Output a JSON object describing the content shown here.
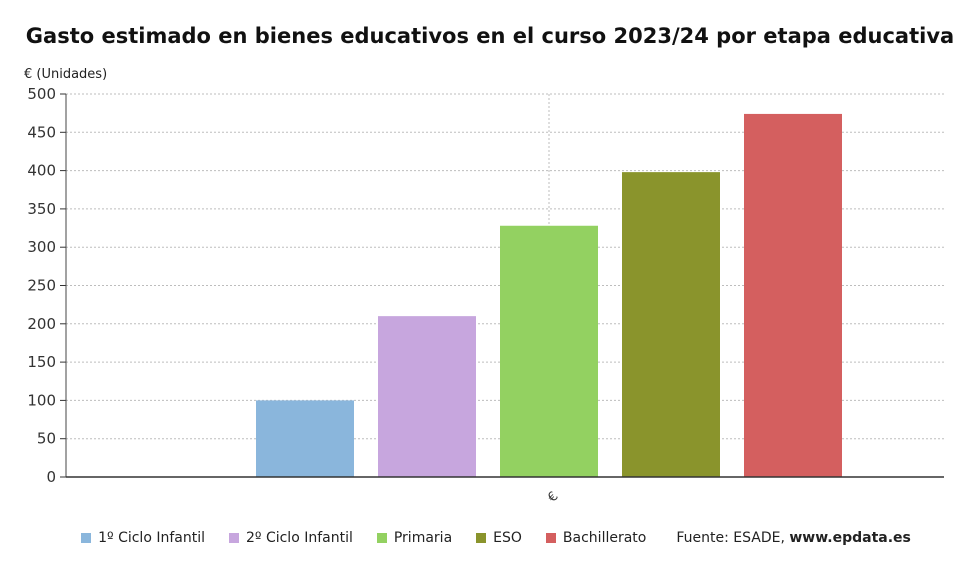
{
  "chart_data": {
    "type": "bar",
    "title": "Gasto estimado en bienes educativos en el curso 2023/24 por etapa educativa",
    "ylabel": "€ (Unidades)",
    "categories": [
      "€"
    ],
    "ylim": [
      0,
      500
    ],
    "yticks": [
      0,
      50,
      100,
      150,
      200,
      250,
      300,
      350,
      400,
      450,
      500
    ],
    "grid": true,
    "legend_position": "bottom",
    "series": [
      {
        "name": "1º Ciclo Infantil",
        "color": "#8ab6dc",
        "values": [
          100
        ]
      },
      {
        "name": "2º Ciclo Infantil",
        "color": "#c7a6de",
        "values": [
          210
        ]
      },
      {
        "name": "Primaria",
        "color": "#93d161",
        "values": [
          328
        ]
      },
      {
        "name": "ESO",
        "color": "#8a942c",
        "values": [
          398
        ]
      },
      {
        "name": "Bachillerato",
        "color": "#d45f5f",
        "values": [
          474
        ]
      }
    ]
  },
  "source": {
    "label": "Fuente: ESADE, ",
    "site": "www.epdata.es"
  }
}
